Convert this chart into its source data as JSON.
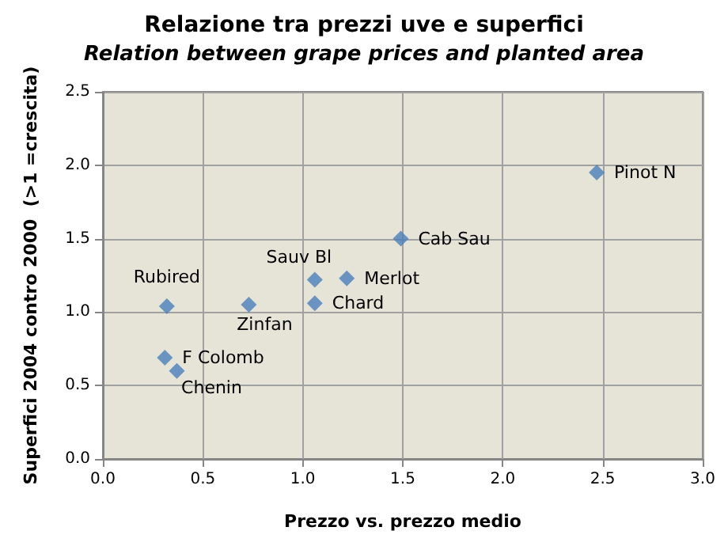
{
  "chart_data": {
    "type": "scatter",
    "title": "Relazione tra prezzi uve e superfici",
    "subtitle": "Relation between grape prices and planted area",
    "xlabel": "Prezzo vs. prezzo medio",
    "ylabel": "Superfici 2004 contro 2000  (>1 =crescita)",
    "x": [
      2.47,
      1.49,
      1.22,
      1.06,
      1.06,
      0.73,
      0.32,
      0.31,
      0.37
    ],
    "series": [
      {
        "color": "#4a7ebb",
        "values": [
          1.95,
          1.5,
          1.23,
          1.22,
          1.06,
          1.05,
          1.04,
          0.69,
          0.6
        ]
      }
    ],
    "annotations": [
      {
        "text": "Pinot N",
        "x": 2.47,
        "y": 1.95
      },
      {
        "text": "Cab Sau",
        "x": 1.49,
        "y": 1.5
      },
      {
        "text": "Merlot",
        "x": 1.22,
        "y": 1.23
      },
      {
        "text": "Sauv Bl",
        "x": 1.06,
        "y": 1.22
      },
      {
        "text": "Chard",
        "x": 1.06,
        "y": 1.06
      },
      {
        "text": "Zinfan",
        "x": 0.73,
        "y": 1.05
      },
      {
        "text": "Rubired",
        "x": 0.32,
        "y": 1.04
      },
      {
        "text": "F Colomb",
        "x": 0.31,
        "y": 0.69
      },
      {
        "text": "Chenin",
        "x": 0.37,
        "y": 0.6
      }
    ],
    "xlim": [
      0,
      3
    ],
    "ylim": [
      0,
      2.5
    ],
    "xticks": [
      {
        "value": 0,
        "label": "0.0"
      },
      {
        "value": 0.5,
        "label": "0.5"
      },
      {
        "value": 1,
        "label": "1.0"
      },
      {
        "value": 1.5,
        "label": "1.5"
      },
      {
        "value": 2,
        "label": "2.0"
      },
      {
        "value": 2.5,
        "label": "2.5"
      },
      {
        "value": 3,
        "label": "3.0"
      }
    ],
    "yticks": [
      {
        "value": 0,
        "label": "0.0"
      },
      {
        "value": 0.5,
        "label": "0.5"
      },
      {
        "value": 1,
        "label": "1.0"
      },
      {
        "value": 1.5,
        "label": "1.5"
      },
      {
        "value": 2,
        "label": "2.0"
      },
      {
        "value": 2.5,
        "label": "2.5"
      }
    ],
    "grid": true,
    "marker": "diamond"
  }
}
